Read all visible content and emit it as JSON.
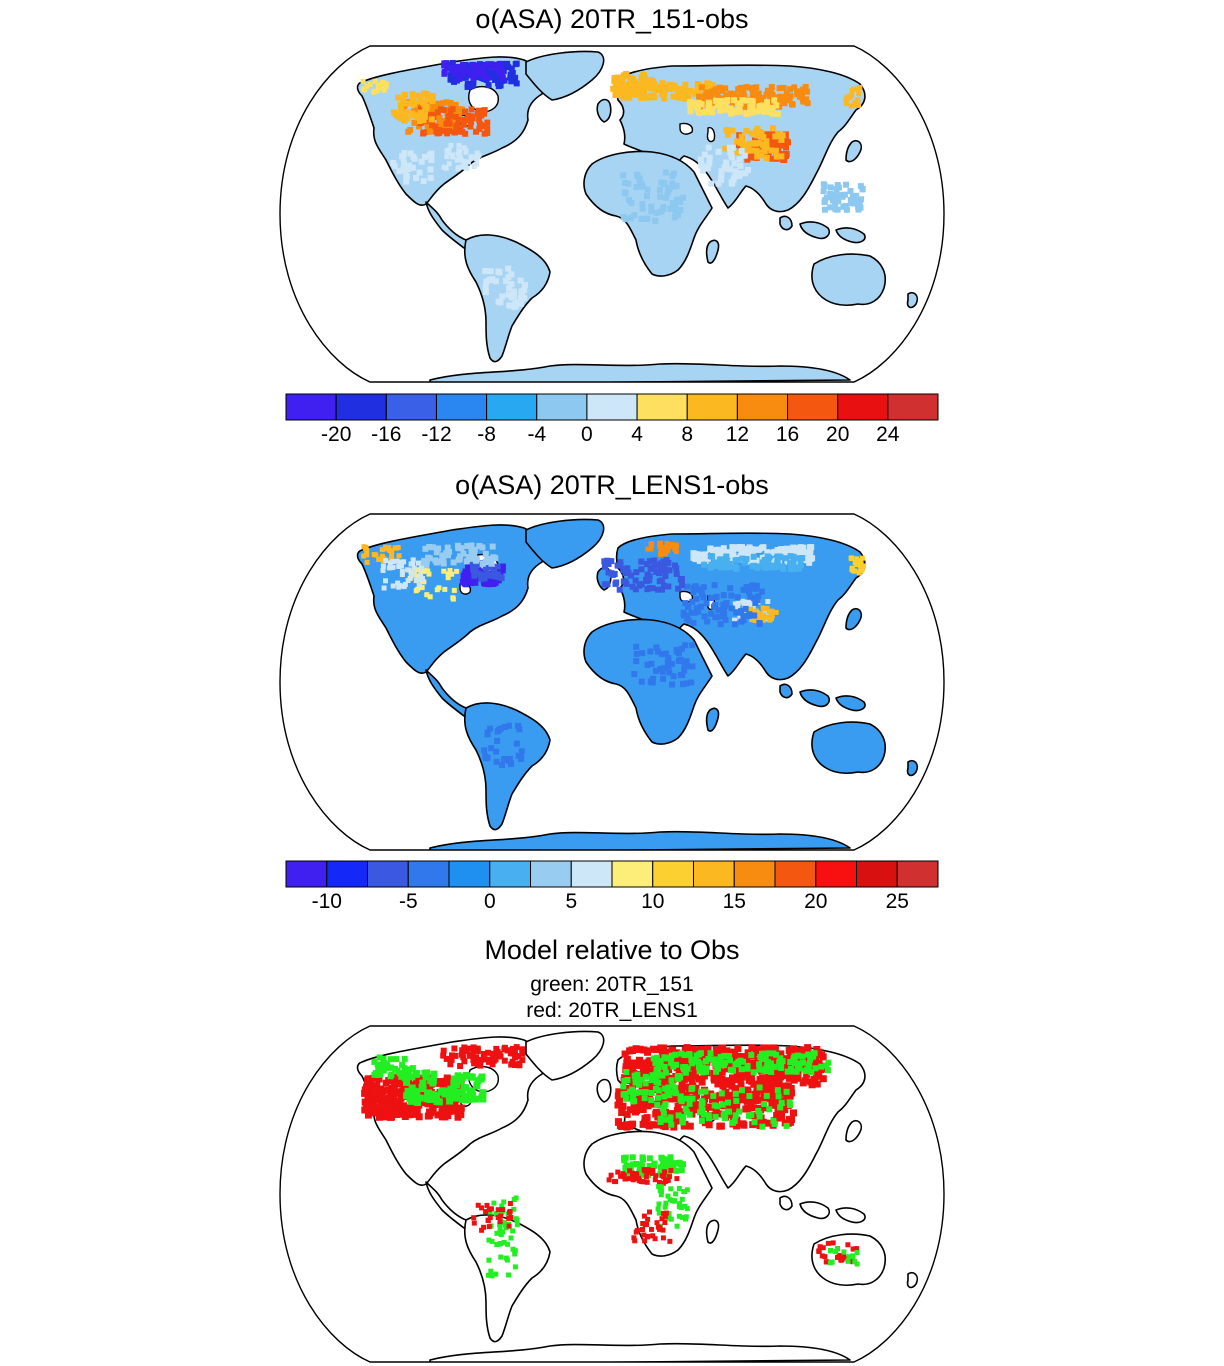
{
  "panels": [
    {
      "id": "panel1",
      "title": "o(ASA) 20TR_151-obs",
      "colorbar": {
        "labels": [
          "-20",
          "-16",
          "-12",
          "-8",
          "-4",
          "0",
          "4",
          "8",
          "12",
          "16",
          "20",
          "24"
        ],
        "colors": [
          "#4020f0",
          "#2030e0",
          "#3a60e8",
          "#2a86f0",
          "#28a8f0",
          "#8cc8f0",
          "#cde6f8",
          "#fde060",
          "#fcb820",
          "#f88c10",
          "#f45810",
          "#e81010",
          "#d03030"
        ]
      },
      "land_color": "#a8d4f4"
    },
    {
      "id": "panel2",
      "title": "o(ASA) 20TR_LENS1-obs",
      "colorbar": {
        "labels": [
          "-10",
          "-5",
          "0",
          "5",
          "10",
          "15",
          "20",
          "25"
        ],
        "colors": [
          "#4020f0",
          "#1428f8",
          "#3a58e0",
          "#3078ec",
          "#2090f0",
          "#48b0f0",
          "#98ccf0",
          "#cde6f8",
          "#fcee78",
          "#fcd030",
          "#fcb820",
          "#f88c10",
          "#f45810",
          "#f81010",
          "#d81010",
          "#d03030"
        ]
      },
      "land_color": "#3a9cf0"
    },
    {
      "id": "panel3",
      "title": "Model relative to Obs",
      "subtitle_lines": [
        "green: 20TR_151",
        "red: 20TR_LENS1"
      ],
      "legend": [
        {
          "label": "green",
          "color": "#22ee22"
        },
        {
          "label": "red",
          "color": "#ee1111"
        }
      ]
    }
  ]
}
